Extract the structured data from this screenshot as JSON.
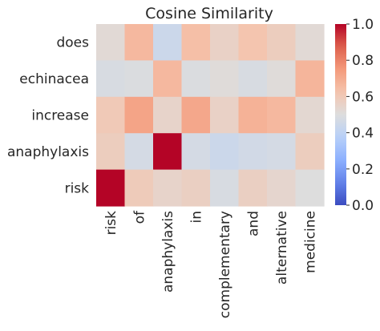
{
  "chart_data": {
    "type": "heatmap",
    "title": "Cosine Similarity",
    "xlabel": "",
    "ylabel": "",
    "x_categories": [
      "risk",
      "of",
      "anaphylaxis",
      "in",
      "complementary",
      "and",
      "alternative",
      "medicine"
    ],
    "y_categories": [
      "does",
      "echinacea",
      "increase",
      "anaphylaxis",
      "risk"
    ],
    "values": [
      [
        0.52,
        0.66,
        0.44,
        0.64,
        0.56,
        0.62,
        0.58,
        0.52
      ],
      [
        0.48,
        0.49,
        0.66,
        0.49,
        0.51,
        0.48,
        0.51,
        0.67
      ],
      [
        0.6,
        0.72,
        0.55,
        0.71,
        0.56,
        0.68,
        0.66,
        0.53
      ],
      [
        0.58,
        0.47,
        1.0,
        0.47,
        0.44,
        0.46,
        0.47,
        0.58
      ],
      [
        1.0,
        0.59,
        0.55,
        0.57,
        0.48,
        0.57,
        0.54,
        0.5
      ]
    ],
    "colormap": "coolwarm",
    "vmin": 0.0,
    "vmax": 1.0,
    "colorbar_ticks": [
      "0.0",
      "0.2",
      "0.4",
      "0.6",
      "0.8",
      "1.0"
    ],
    "colorbar_tick_values": [
      0.0,
      0.2,
      0.4,
      0.6,
      0.8,
      1.0
    ],
    "grid": false
  }
}
